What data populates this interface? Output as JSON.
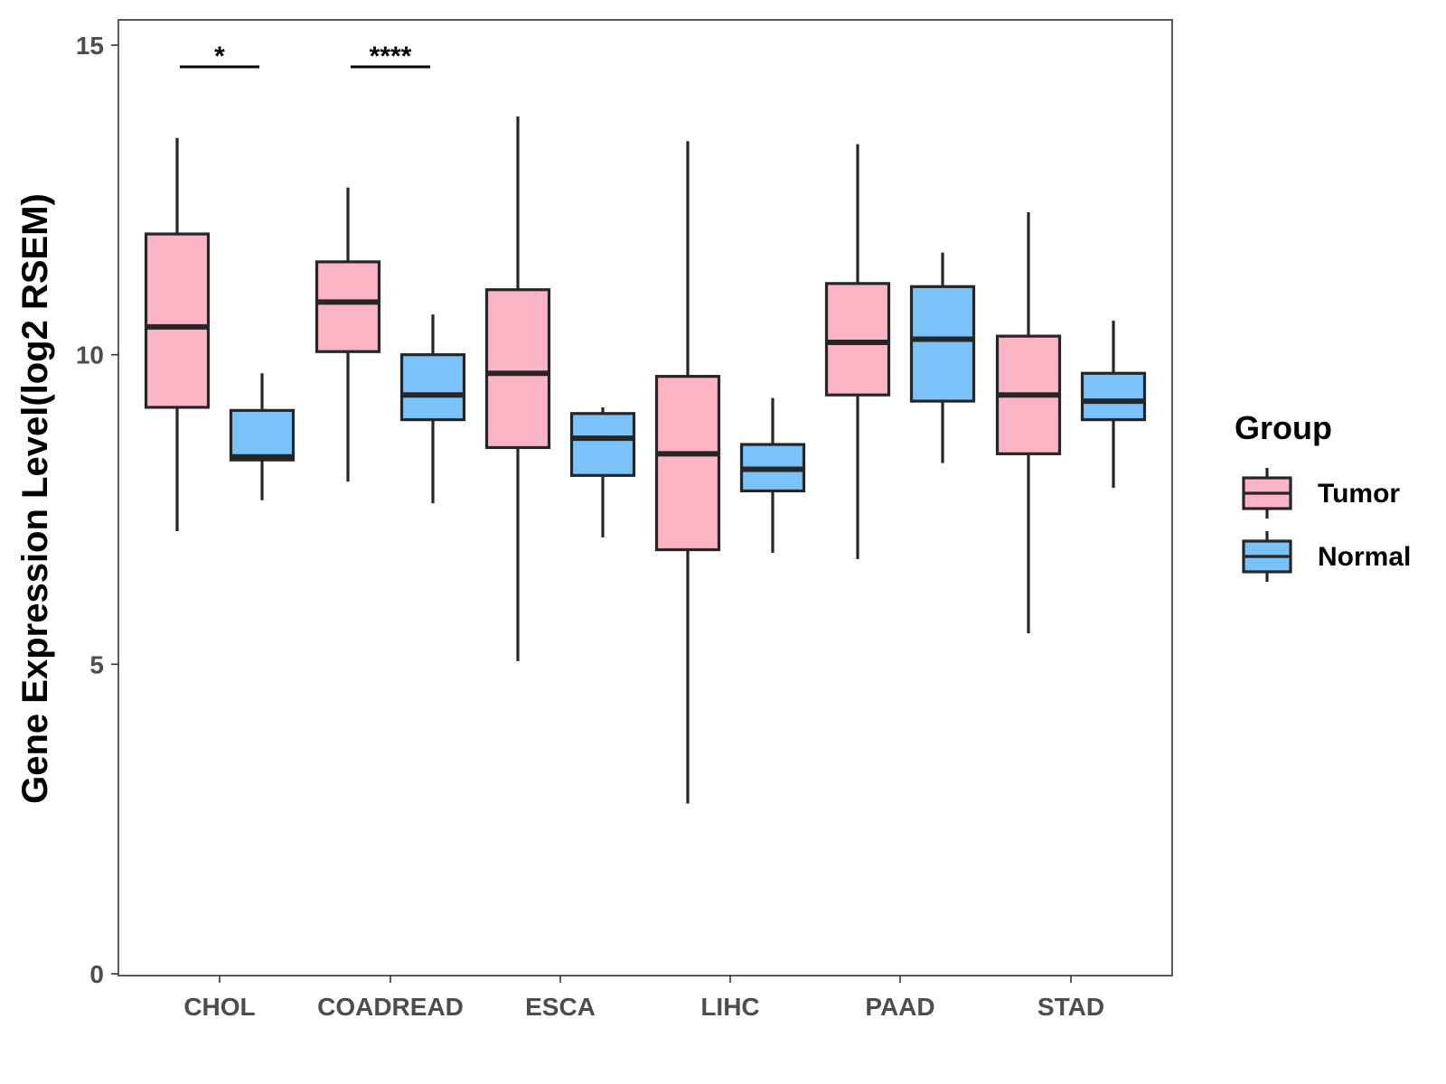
{
  "chart_data": {
    "type": "boxplot",
    "title": "",
    "xlabel": "",
    "ylabel": "Gene Expression Level(log2 RSEM)",
    "ylim": [
      0,
      15
    ],
    "yticks": [
      0,
      5,
      10,
      15
    ],
    "grid": false,
    "categories": [
      "CHOL",
      "COADREAD",
      "ESCA",
      "LIHC",
      "PAAD",
      "STAD"
    ],
    "legend": {
      "title": "Group",
      "position": "right",
      "entries": [
        {
          "name": "Tumor",
          "color": "#FBB4C4"
        },
        {
          "name": "Normal",
          "color": "#7AC2F8"
        }
      ]
    },
    "series": [
      {
        "name": "Tumor",
        "color": "#FBB4C4",
        "boxes": [
          {
            "category": "CHOL",
            "whisker_low": 7.15,
            "q1": 9.15,
            "median": 10.45,
            "q3": 11.95,
            "whisker_high": 13.5
          },
          {
            "category": "COADREAD",
            "whisker_low": 7.95,
            "q1": 10.05,
            "median": 10.85,
            "q3": 11.5,
            "whisker_high": 12.7
          },
          {
            "category": "ESCA",
            "whisker_low": 5.05,
            "q1": 8.5,
            "median": 9.7,
            "q3": 11.05,
            "whisker_high": 13.85
          },
          {
            "category": "LIHC",
            "whisker_low": 2.75,
            "q1": 6.85,
            "median": 8.4,
            "q3": 9.65,
            "whisker_high": 13.45
          },
          {
            "category": "PAAD",
            "whisker_low": 6.7,
            "q1": 9.35,
            "median": 10.2,
            "q3": 11.15,
            "whisker_high": 13.4
          },
          {
            "category": "STAD",
            "whisker_low": 5.5,
            "q1": 8.4,
            "median": 9.35,
            "q3": 10.3,
            "whisker_high": 12.3
          }
        ]
      },
      {
        "name": "Normal",
        "color": "#7AC2F8",
        "boxes": [
          {
            "category": "CHOL",
            "whisker_low": 7.65,
            "q1": 8.3,
            "median": 8.35,
            "q3": 9.1,
            "whisker_high": 9.7
          },
          {
            "category": "COADREAD",
            "whisker_low": 7.6,
            "q1": 8.95,
            "median": 9.35,
            "q3": 10.0,
            "whisker_high": 10.65
          },
          {
            "category": "ESCA",
            "whisker_low": 7.05,
            "q1": 8.05,
            "median": 8.65,
            "q3": 9.05,
            "whisker_high": 9.15
          },
          {
            "category": "LIHC",
            "whisker_low": 6.8,
            "q1": 7.8,
            "median": 8.15,
            "q3": 8.55,
            "whisker_high": 9.3
          },
          {
            "category": "PAAD",
            "whisker_low": 8.25,
            "q1": 9.25,
            "median": 10.25,
            "q3": 11.1,
            "whisker_high": 11.65
          },
          {
            "category": "STAD",
            "whisker_low": 7.85,
            "q1": 8.95,
            "median": 9.25,
            "q3": 9.7,
            "whisker_high": 10.55
          }
        ]
      }
    ],
    "annotations": [
      {
        "category": "CHOL",
        "label": "*",
        "y": 14.65
      },
      {
        "category": "COADREAD",
        "label": "****",
        "y": 14.65
      }
    ]
  }
}
